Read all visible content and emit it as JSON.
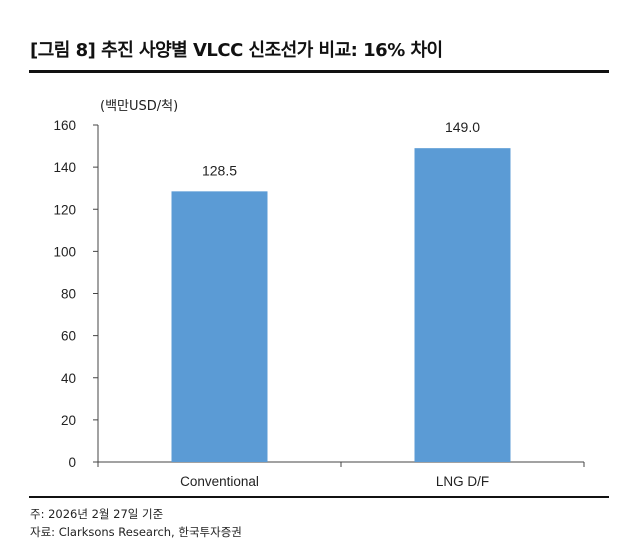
{
  "title": "[그림 8] 추진 사양별 VLCC 신조선가 비교: 16% 차이",
  "notes": {
    "note": "주: 2026년 2월 27일 기준",
    "source": "자료: Clarksons Research, 한국투자증권"
  },
  "chart_data": {
    "type": "bar",
    "unit_label": "(백만USD/척)",
    "categories": [
      "Conventional",
      "LNG D/F"
    ],
    "values": [
      128.5,
      149.0
    ],
    "data_labels": [
      "128.5",
      "149.0"
    ],
    "ylim": [
      0,
      160
    ],
    "yticks": [
      0,
      20,
      40,
      60,
      80,
      100,
      120,
      140,
      160
    ],
    "bar_color": "#5B9BD5",
    "grid": false
  }
}
